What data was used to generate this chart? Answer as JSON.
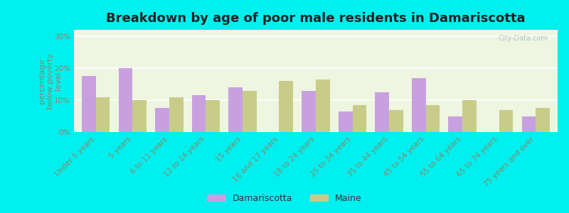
{
  "title": "Breakdown by age of poor male residents in Damariscotta",
  "categories": [
    "Under 5 years",
    "5 years",
    "6 to 11 years",
    "12 to 14 years",
    "15 years",
    "16 and 17 years",
    "18 to 24 years",
    "25 to 34 years",
    "35 to 44 years",
    "45 to 54 years",
    "55 to 64 years",
    "65 to 74 years",
    "75 years and over"
  ],
  "damariscotta": [
    17.5,
    20.0,
    7.5,
    11.5,
    14.0,
    0.0,
    13.0,
    6.5,
    12.5,
    17.0,
    5.0,
    0.0,
    5.0
  ],
  "maine": [
    11.0,
    10.0,
    11.0,
    10.0,
    13.0,
    16.0,
    16.5,
    8.5,
    7.0,
    8.5,
    10.0,
    7.0,
    7.5
  ],
  "damariscotta_color": "#c8a0e0",
  "maine_color": "#c8cc88",
  "chart_bg_color": "#eef5e0",
  "outer_background": "#00f0f0",
  "ylabel": "percentage\nbelow poverty\nlevel",
  "ylim": [
    0,
    32
  ],
  "yticks": [
    0,
    10,
    20,
    30
  ],
  "ytick_labels": [
    "0%",
    "10%",
    "20%",
    "30%"
  ],
  "bar_width": 0.38,
  "title_fontsize": 13,
  "axis_label_fontsize": 8,
  "tick_fontsize": 7.5,
  "legend_fontsize": 9,
  "tick_color": "#888866",
  "label_color": "#888866",
  "title_color": "#222222",
  "watermark": "City-Data.com",
  "watermark_color": "#aabbcc"
}
